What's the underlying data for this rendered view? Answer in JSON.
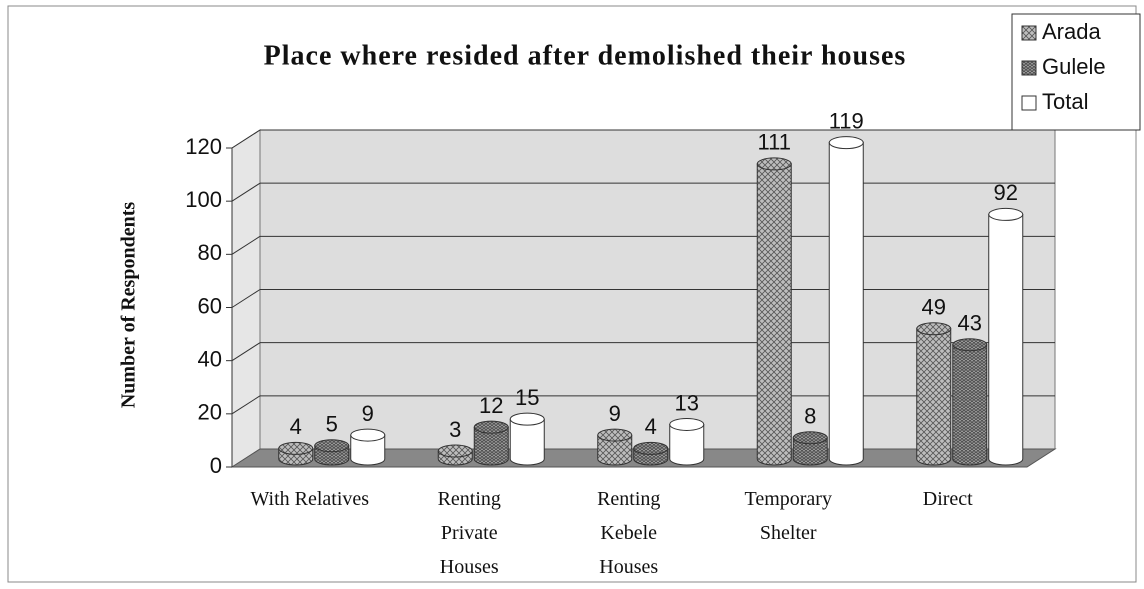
{
  "chart_data": {
    "type": "bar3d",
    "title": "Place where resided after demolished their houses",
    "ylabel": "Number of Respondents",
    "categories": [
      "With Relatives",
      "Renting\nPrivate\nHouses",
      "Renting\nKebele\nHouses",
      "Temporary\nShelter",
      "Direct"
    ],
    "series": [
      {
        "name": "Arada",
        "color": "#bdbdbd",
        "values": [
          4,
          3,
          9,
          111,
          49
        ]
      },
      {
        "name": "Gulele",
        "color": "#9a9a9a",
        "values": [
          5,
          12,
          4,
          8,
          43
        ]
      },
      {
        "name": "Total",
        "color": "#ffffff",
        "values": [
          9,
          15,
          13,
          119,
          92
        ]
      }
    ],
    "ylim": [
      0,
      120
    ],
    "yticks": [
      0,
      20,
      40,
      60,
      80,
      100,
      120
    ],
    "grid": true,
    "legend": "top-right"
  }
}
